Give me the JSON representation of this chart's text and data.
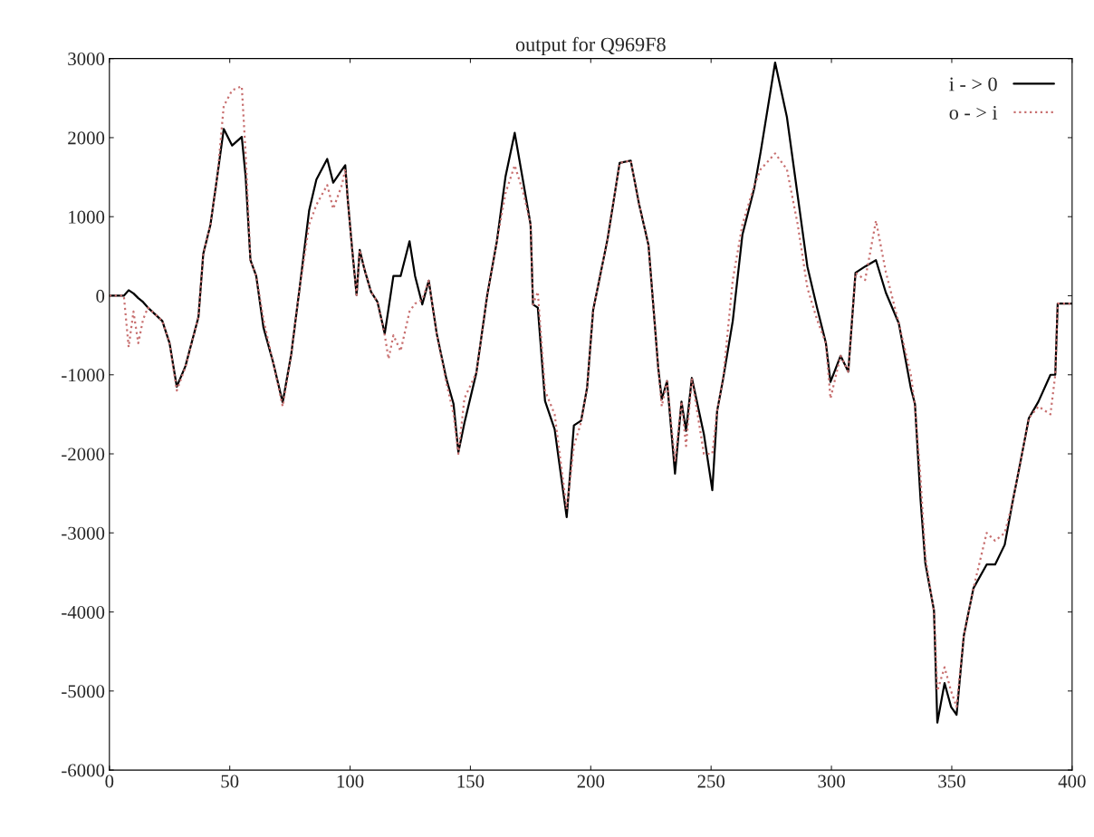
{
  "chart_data": {
    "type": "line",
    "title": "output for Q969F8",
    "x": [
      0,
      6,
      8,
      10,
      12,
      14,
      16,
      22,
      25,
      28,
      31.6,
      37,
      39,
      42,
      45,
      47.5,
      51,
      55,
      56.6,
      58.6,
      61,
      64,
      68,
      72,
      75.6,
      79,
      83,
      86,
      90.5,
      93,
      96.6,
      98,
      99,
      100.8,
      102.7,
      104,
      106,
      108.7,
      111.4,
      114.4,
      116,
      118,
      121,
      124.7,
      127,
      130,
      132.7,
      136,
      140,
      143,
      145,
      147.5,
      152.5,
      157,
      161,
      164.6,
      168.4,
      172,
      175,
      176,
      178,
      181,
      185,
      190,
      193,
      196,
      198.5,
      201,
      207,
      212,
      216.6,
      220,
      224,
      228,
      229.5,
      231.7,
      235,
      237.7,
      239.6,
      242,
      247,
      250.5,
      252.5,
      255,
      259,
      263,
      268,
      270.6,
      276.6,
      281.5,
      286,
      290,
      294,
      297.7,
      299.6,
      303.8,
      307,
      310,
      314,
      318.5,
      322.6,
      328,
      333,
      334.7,
      337,
      339,
      342.6,
      344,
      347,
      349.7,
      352,
      355,
      359,
      364.5,
      368,
      372,
      375,
      379,
      382,
      386,
      391,
      393,
      394,
      400
    ],
    "series": [
      {
        "name": "i - > 0",
        "color": "#000000",
        "line_style": "solid",
        "values": [
          0,
          0,
          70,
          30,
          -30,
          -80,
          -150,
          -320,
          -600,
          -1150,
          -890,
          -270,
          530,
          900,
          1550,
          2110,
          1900,
          2010,
          1510,
          450,
          250,
          -400,
          -840,
          -1350,
          -730,
          90,
          1080,
          1470,
          1730,
          1430,
          1590,
          1650,
          1230,
          610,
          10,
          580,
          330,
          50,
          -80,
          -480,
          -160,
          250,
          250,
          690,
          250,
          -110,
          190,
          -480,
          -1050,
          -1370,
          -1980,
          -1610,
          -970,
          10,
          690,
          1510,
          2060,
          1430,
          900,
          -110,
          -150,
          -1330,
          -1690,
          -2800,
          -1640,
          -1580,
          -1160,
          -180,
          720,
          1680,
          1710,
          1170,
          640,
          -900,
          -1310,
          -1080,
          -2250,
          -1340,
          -1710,
          -1040,
          -1750,
          -2460,
          -1460,
          -1050,
          -320,
          770,
          1370,
          1820,
          2950,
          2260,
          1260,
          370,
          -150,
          -600,
          -1090,
          -760,
          -960,
          290,
          370,
          450,
          40,
          -350,
          -1170,
          -1370,
          -2570,
          -3380,
          -3980,
          -5400,
          -4900,
          -5200,
          -5300,
          -4300,
          -3700,
          -3400,
          -3400,
          -3150,
          -2650,
          -2030,
          -1550,
          -1340,
          -1000,
          -1000,
          -100,
          -100
        ]
      },
      {
        "name": "o - > i",
        "color": "#c87070",
        "line_style": "dotted",
        "values": [
          0,
          0,
          -650,
          -200,
          -600,
          -300,
          -150,
          -320,
          -600,
          -1200,
          -900,
          -270,
          530,
          900,
          1550,
          2400,
          2600,
          2650,
          1800,
          450,
          250,
          -300,
          -840,
          -1400,
          -730,
          90,
          900,
          1150,
          1400,
          1100,
          1400,
          1600,
          1230,
          610,
          10,
          580,
          330,
          50,
          -80,
          -500,
          -800,
          -500,
          -700,
          -200,
          -100,
          -50,
          190,
          -480,
          -1100,
          -1500,
          -2000,
          -1300,
          -970,
          10,
          690,
          1300,
          1650,
          1300,
          900,
          -110,
          50,
          -1200,
          -1500,
          -2700,
          -1900,
          -1600,
          -1160,
          -180,
          720,
          1680,
          1710,
          1170,
          640,
          -900,
          -1400,
          -1080,
          -2100,
          -1340,
          -1900,
          -1040,
          -2000,
          -2000,
          -1460,
          -1050,
          200,
          900,
          1400,
          1600,
          1800,
          1600,
          900,
          100,
          -300,
          -600,
          -1300,
          -760,
          -960,
          290,
          200,
          950,
          300,
          -350,
          -1000,
          -1400,
          -2300,
          -3300,
          -4000,
          -5000,
          -4700,
          -5000,
          -5200,
          -4300,
          -3700,
          -3000,
          -3100,
          -3000,
          -2650,
          -2030,
          -1550,
          -1400,
          -1500,
          -1000,
          -100,
          -100
        ]
      }
    ],
    "xlim": [
      0,
      400
    ],
    "xticks": [
      0,
      50,
      100,
      150,
      200,
      250,
      300,
      350,
      400
    ],
    "ylim": [
      -6000,
      3000
    ],
    "yticks": [
      -6000,
      -5000,
      -4000,
      -3000,
      -2000,
      -1000,
      0,
      1000,
      2000,
      3000
    ],
    "legend": "top right"
  }
}
